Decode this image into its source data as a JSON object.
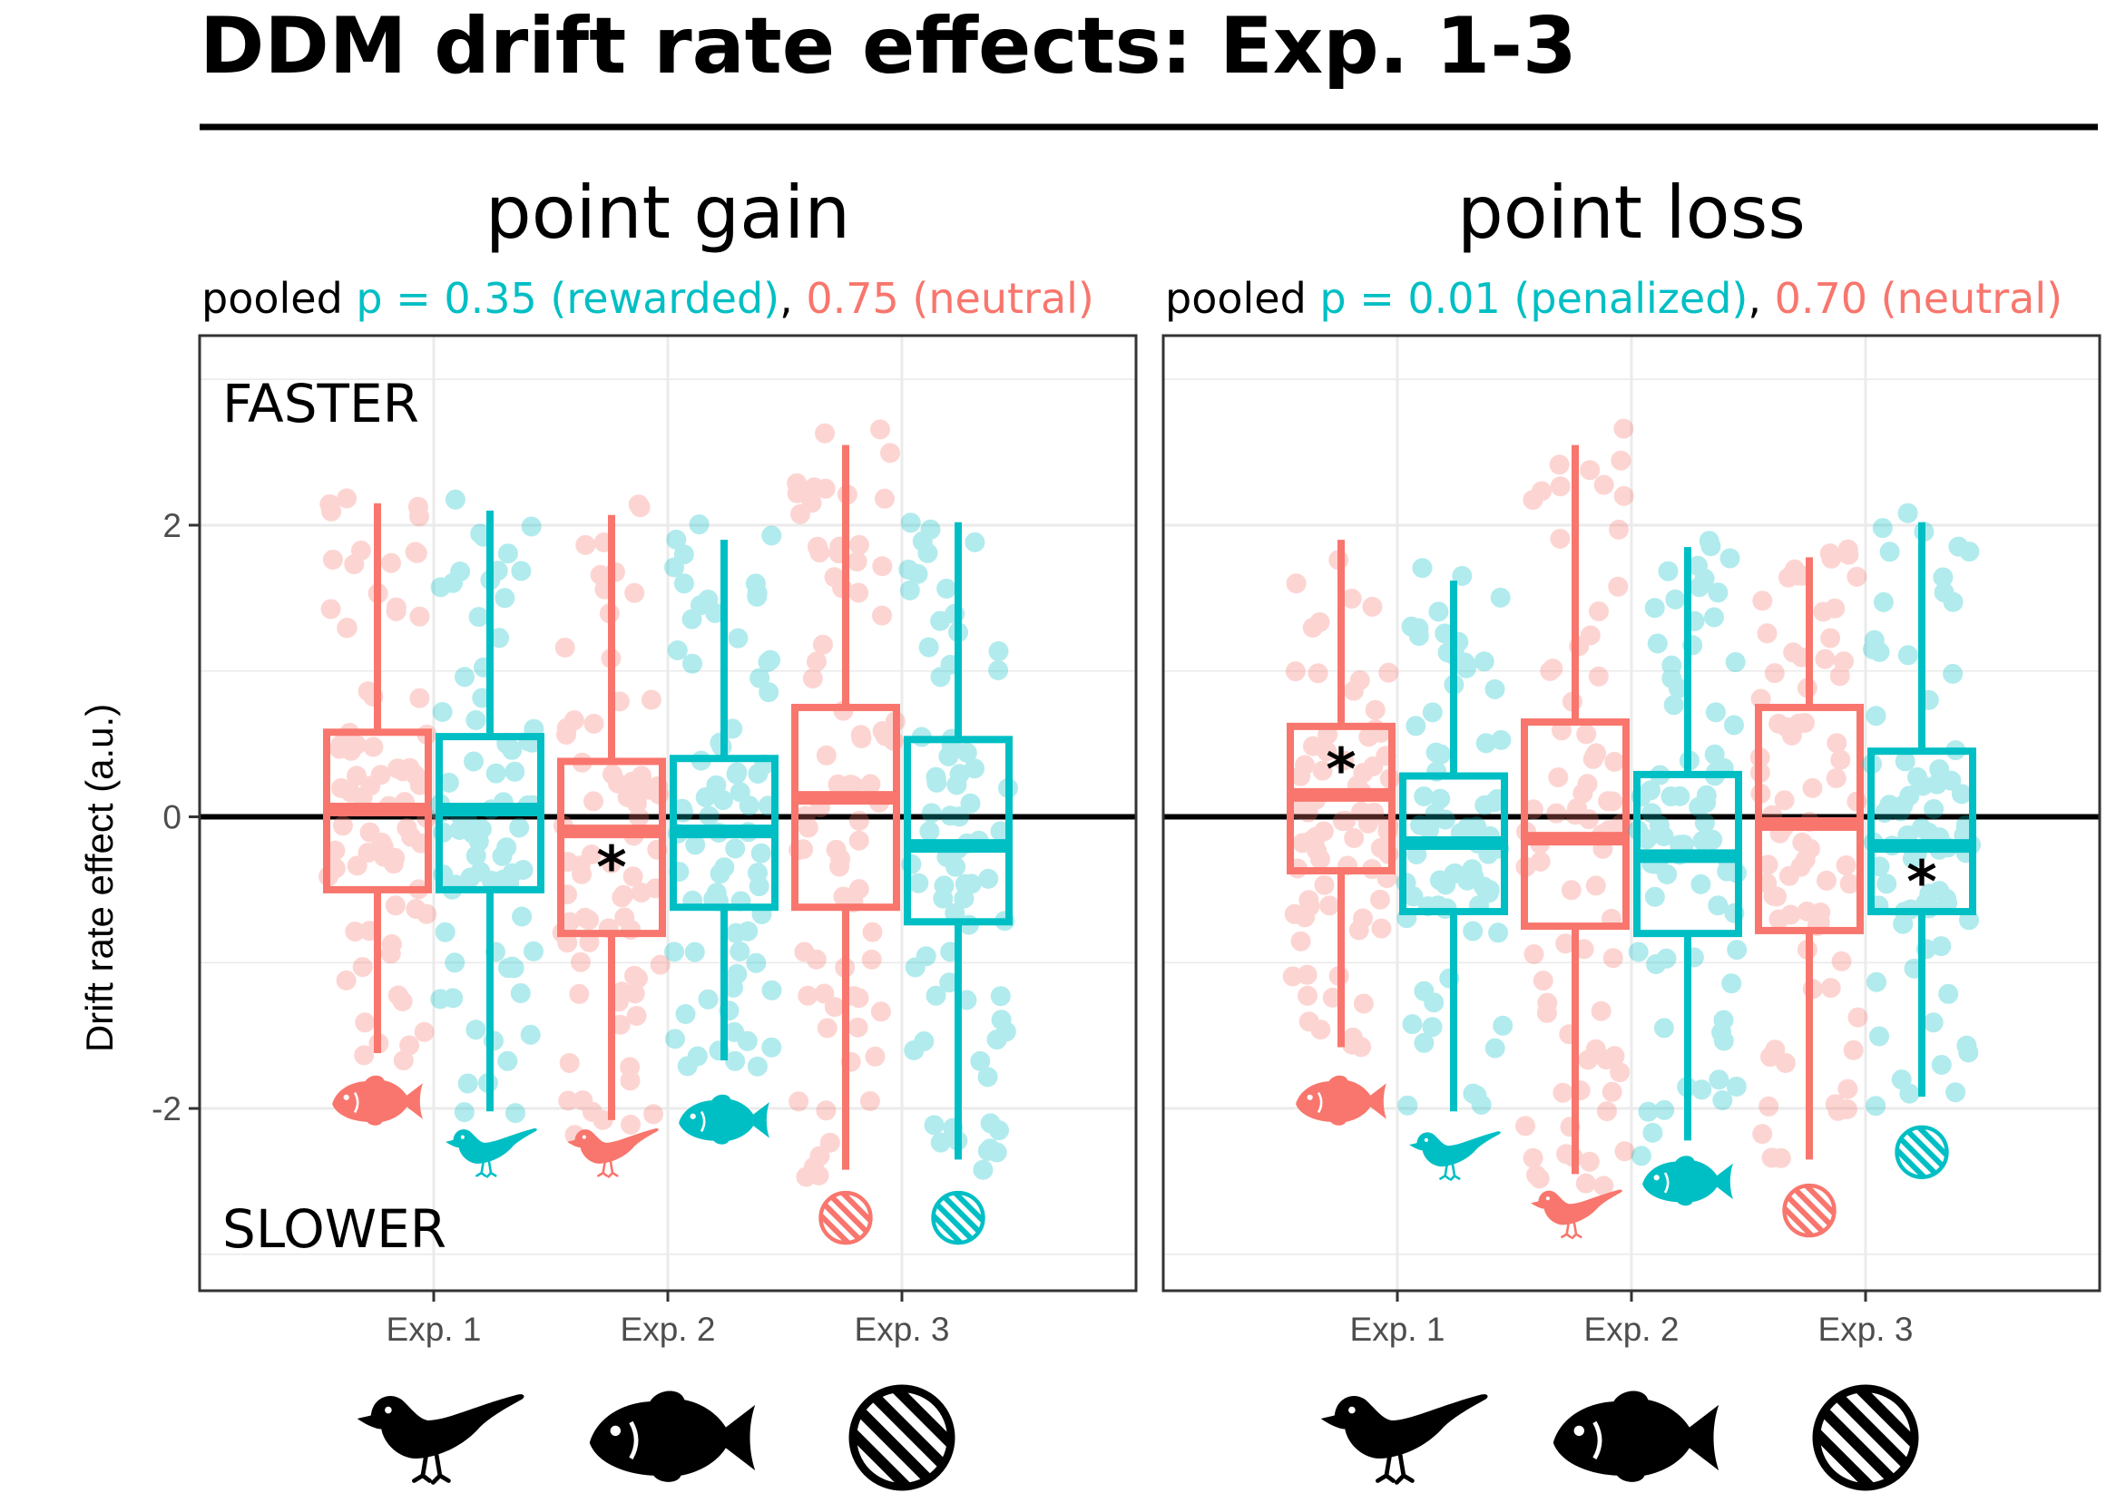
{
  "title": "DDM drift rate effects: Exp. 1-3",
  "colors": {
    "neutral": "#F8766D",
    "valued": "#00BFC4",
    "zero_line": "#000000",
    "grid": "#EBEBEB",
    "panel_border": "#333333"
  },
  "chart_data": {
    "type": "box",
    "ylabel": "Drift rate effect (a.u.)",
    "ylim": [
      -3.25,
      3.3
    ],
    "yticks": [
      "2",
      "0",
      "-2"
    ],
    "ytick_values": [
      2,
      0,
      -2
    ],
    "reference_line": 0,
    "annotations": {
      "top": "FASTER",
      "bottom": "SLOWER"
    },
    "categories": [
      "Exp. 1",
      "Exp. 2",
      "Exp. 3"
    ],
    "category_icons": [
      "bird-icon",
      "fish-icon",
      "striped-circle-icon"
    ],
    "panels": [
      {
        "title": "point gain",
        "subtitle": {
          "pre": "pooled ",
          "valued_text": "p = 0.35 (rewarded)",
          "sep": ", ",
          "neutral_text": "0.75 (neutral)"
        },
        "series": [
          {
            "role": "neutral",
            "color": "#F8766D",
            "boxes": [
              {
                "category": "Exp. 1",
                "whisker_low": -1.62,
                "q1": -0.5,
                "median": 0.05,
                "q3": 0.58,
                "whisker_high": 2.15,
                "significant": false,
                "icon": "fish-icon",
                "icon_y": -1.95
              },
              {
                "category": "Exp. 2",
                "whisker_low": -2.08,
                "q1": -0.8,
                "median": -0.1,
                "q3": 0.38,
                "whisker_high": 2.07,
                "significant": true,
                "icon": "bird-icon",
                "icon_y": -2.3
              },
              {
                "category": "Exp. 3",
                "whisker_low": -2.42,
                "q1": -0.62,
                "median": 0.13,
                "q3": 0.75,
                "whisker_high": 2.55,
                "significant": false,
                "icon": "striped-circle-icon",
                "icon_y": -2.75
              }
            ]
          },
          {
            "role": "valued",
            "color": "#00BFC4",
            "boxes": [
              {
                "category": "Exp. 1",
                "whisker_low": -2.02,
                "q1": -0.5,
                "median": 0.05,
                "q3": 0.55,
                "whisker_high": 2.1,
                "significant": false,
                "icon": "bird-icon",
                "icon_y": -2.3
              },
              {
                "category": "Exp. 2",
                "whisker_low": -1.67,
                "q1": -0.62,
                "median": -0.1,
                "q3": 0.4,
                "whisker_high": 1.9,
                "significant": false,
                "icon": "fish-icon",
                "icon_y": -2.08
              },
              {
                "category": "Exp. 3",
                "whisker_low": -2.35,
                "q1": -0.72,
                "median": -0.2,
                "q3": 0.53,
                "whisker_high": 2.02,
                "significant": false,
                "icon": "striped-circle-icon",
                "icon_y": -2.75
              }
            ]
          }
        ]
      },
      {
        "title": "point loss",
        "subtitle": {
          "pre": "pooled ",
          "valued_text": "p = 0.01 (penalized)",
          "sep": ", ",
          "neutral_text": "0.70 (neutral)"
        },
        "series": [
          {
            "role": "neutral",
            "color": "#F8766D",
            "boxes": [
              {
                "category": "Exp. 1",
                "whisker_low": -1.58,
                "q1": -0.37,
                "median": 0.15,
                "q3": 0.62,
                "whisker_high": 1.9,
                "significant": true,
                "icon": "fish-icon",
                "icon_y": -1.95
              },
              {
                "category": "Exp. 2",
                "whisker_low": -2.45,
                "q1": -0.75,
                "median": -0.15,
                "q3": 0.65,
                "whisker_high": 2.55,
                "significant": false,
                "icon": "bird-icon",
                "icon_y": -2.72
              },
              {
                "category": "Exp. 3",
                "whisker_low": -2.35,
                "q1": -0.78,
                "median": -0.05,
                "q3": 0.75,
                "whisker_high": 1.78,
                "significant": false,
                "icon": "striped-circle-icon",
                "icon_y": -2.7
              }
            ]
          },
          {
            "role": "valued",
            "color": "#00BFC4",
            "boxes": [
              {
                "category": "Exp. 1",
                "whisker_low": -2.02,
                "q1": -0.65,
                "median": -0.18,
                "q3": 0.28,
                "whisker_high": 1.62,
                "significant": false,
                "icon": "bird-icon",
                "icon_y": -2.32
              },
              {
                "category": "Exp. 2",
                "whisker_low": -2.22,
                "q1": -0.8,
                "median": -0.27,
                "q3": 0.29,
                "whisker_high": 1.85,
                "significant": false,
                "icon": "fish-icon",
                "icon_y": -2.5
              },
              {
                "category": "Exp. 3",
                "whisker_low": -1.92,
                "q1": -0.65,
                "median": -0.2,
                "q3": 0.45,
                "whisker_high": 2.02,
                "significant": true,
                "icon": "striped-circle-icon",
                "icon_y": -2.3
              }
            ]
          }
        ]
      }
    ]
  }
}
